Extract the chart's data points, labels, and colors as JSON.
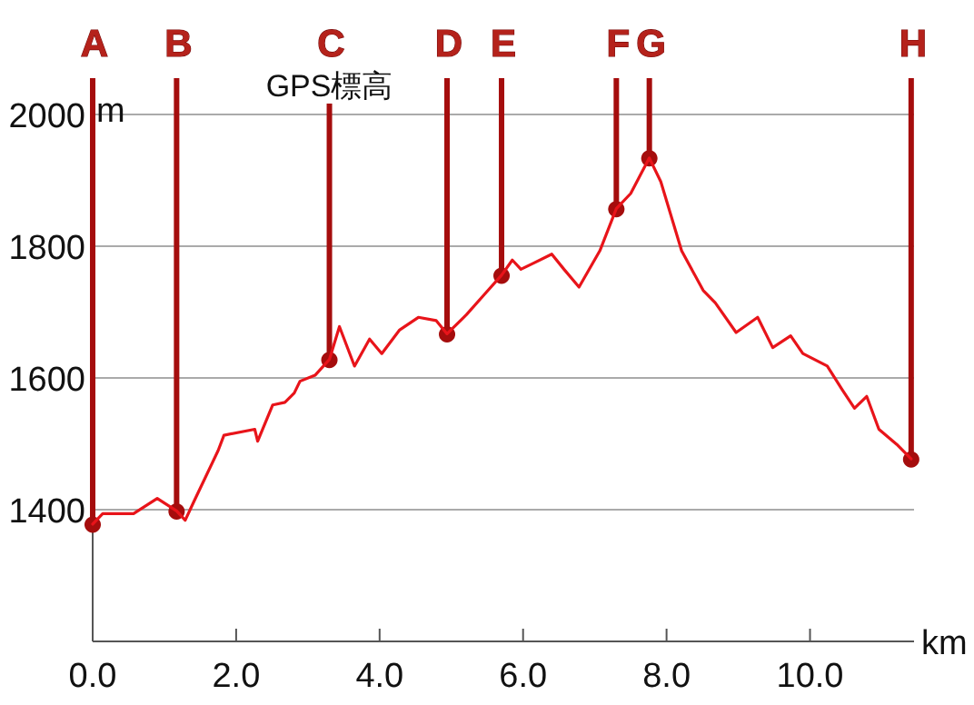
{
  "chart_data": {
    "type": "line",
    "title": "GPS標高",
    "ylabel": "m",
    "xlabel": "km",
    "xlim": [
      0,
      11.45
    ],
    "ylim": [
      1200,
      2000
    ],
    "xticks": [
      {
        "value": 0,
        "label": "0.0"
      },
      {
        "value": 2,
        "label": "2.0"
      },
      {
        "value": 4,
        "label": "4.0"
      },
      {
        "value": 6,
        "label": "6.0"
      },
      {
        "value": 8,
        "label": "8.0"
      },
      {
        "value": 10,
        "label": "10.0"
      }
    ],
    "yticks": [
      1400,
      1600,
      1800,
      2000
    ],
    "grid": "y",
    "marker": "none",
    "line_style": "solid",
    "series": [
      {
        "color": "#e8141a",
        "x": [
          0,
          0.14,
          0.57,
          0.9,
          1.17,
          1.29,
          1.41,
          1.75,
          1.83,
          2.26,
          2.3,
          2.51,
          2.68,
          2.81,
          2.89,
          3.1,
          3.3,
          3.44,
          3.65,
          3.86,
          4.03,
          4.28,
          4.54,
          4.79,
          4.94,
          5.21,
          5.47,
          5.7,
          5.85,
          5.97,
          6.14,
          6.4,
          6.57,
          6.78,
          7.07,
          7.3,
          7.5,
          7.76,
          7.92,
          8.21,
          8.51,
          8.68,
          8.97,
          9.27,
          9.48,
          9.73,
          9.9,
          10.24,
          10.45,
          10.62,
          10.79,
          10.96,
          11.21,
          11.41
        ],
        "values": [
          1378,
          1394,
          1394,
          1417,
          1398,
          1384,
          1412,
          1490,
          1513,
          1522,
          1504,
          1559,
          1563,
          1577,
          1595,
          1604,
          1628,
          1678,
          1618,
          1659,
          1637,
          1673,
          1692,
          1687,
          1667,
          1696,
          1728,
          1756,
          1779,
          1765,
          1774,
          1788,
          1765,
          1738,
          1793,
          1857,
          1880,
          1934,
          1898,
          1793,
          1733,
          1714,
          1669,
          1692,
          1646,
          1664,
          1637,
          1618,
          1582,
          1554,
          1572,
          1522,
          1499,
          1477
        ]
      }
    ],
    "annotations": [
      {
        "text": "A",
        "x": 0,
        "y": 1378
      },
      {
        "text": "B",
        "x": 1.17,
        "y": 1398
      },
      {
        "text": "C",
        "x": 3.3,
        "y": 1628
      },
      {
        "text": "D",
        "x": 4.94,
        "y": 1667
      },
      {
        "text": "E",
        "x": 5.7,
        "y": 1756
      },
      {
        "text": "F",
        "x": 7.3,
        "y": 1857
      },
      {
        "text": "G",
        "x": 7.76,
        "y": 1934
      },
      {
        "text": "H",
        "x": 11.41,
        "y": 1477
      }
    ]
  }
}
